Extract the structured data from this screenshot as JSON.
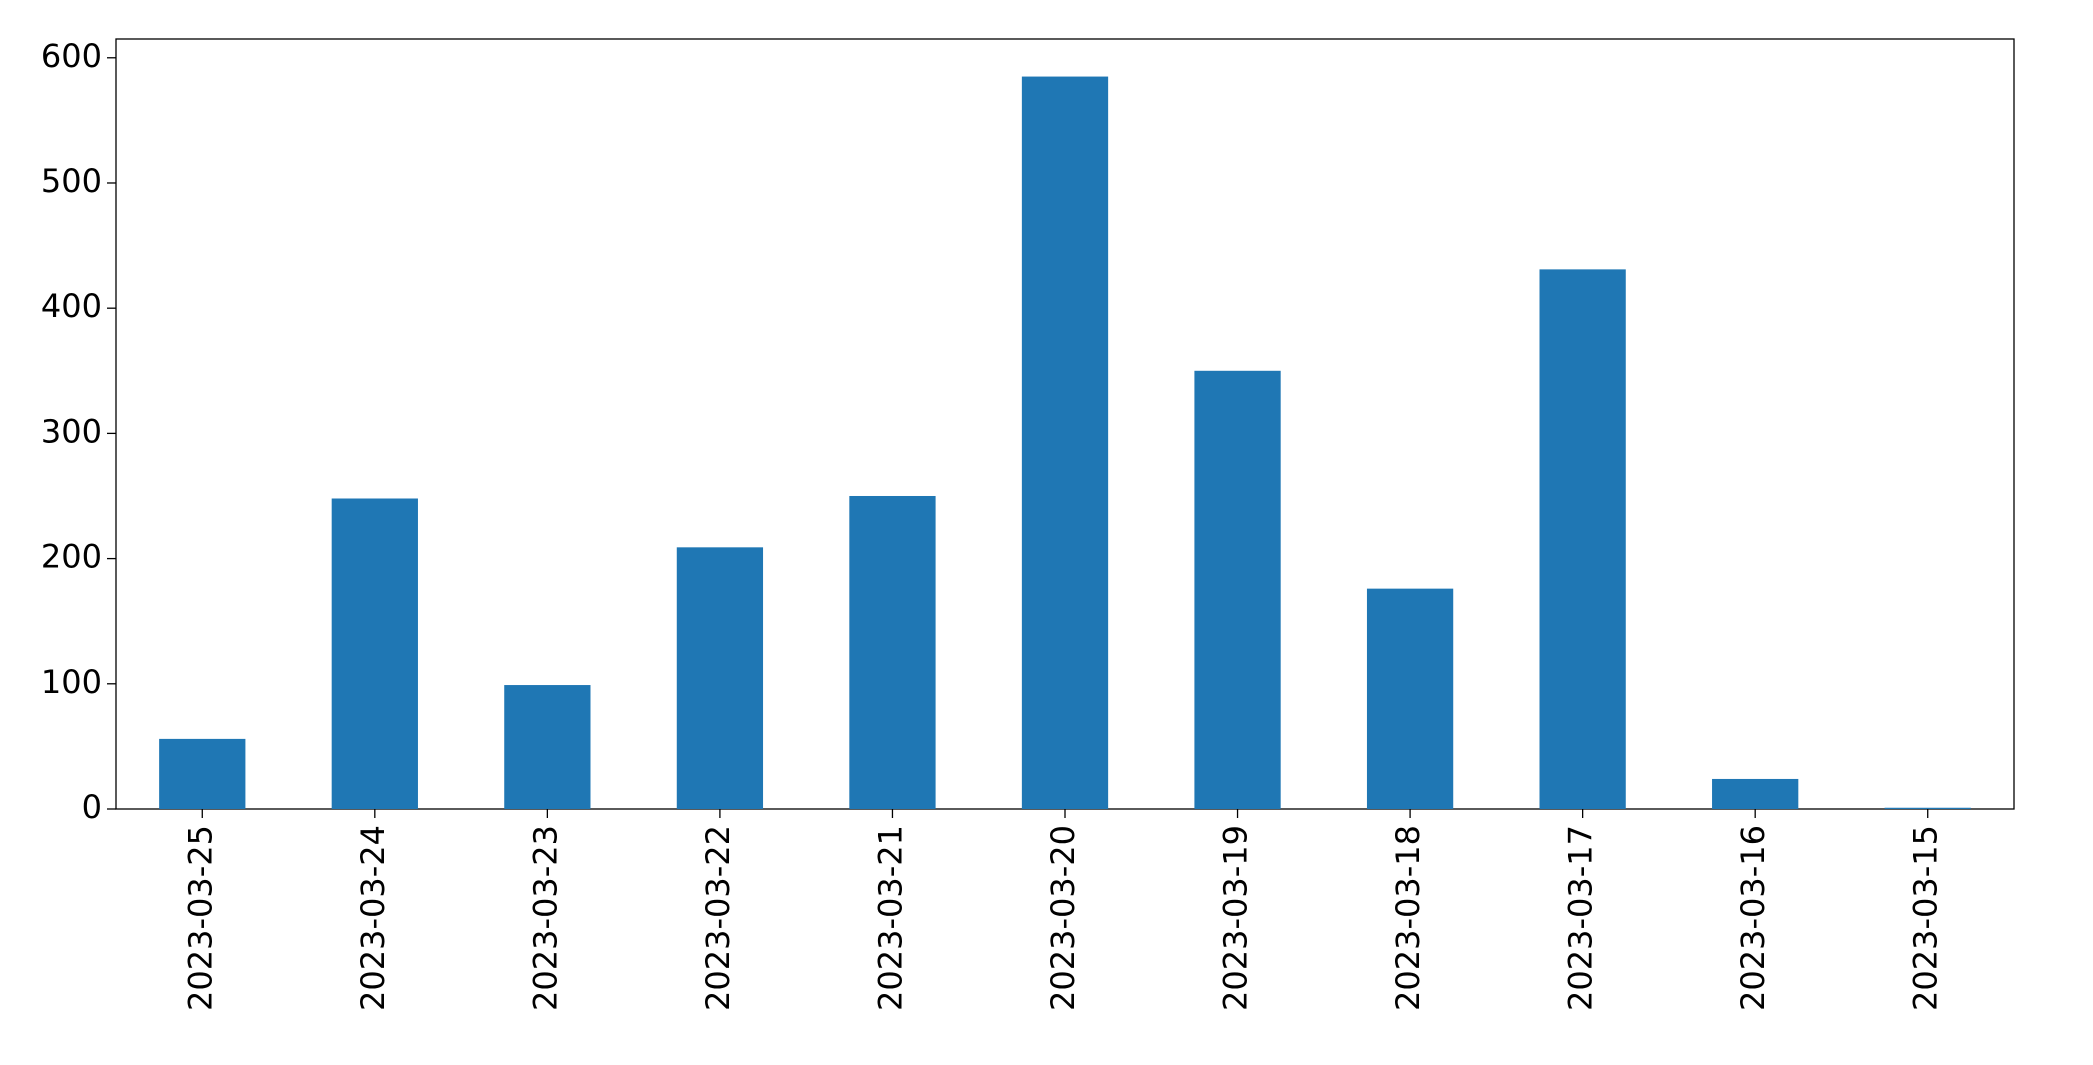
{
  "chart_data": {
    "type": "bar",
    "categories": [
      "2023-03-25",
      "2023-03-24",
      "2023-03-23",
      "2023-03-22",
      "2023-03-21",
      "2023-03-20",
      "2023-03-19",
      "2023-03-18",
      "2023-03-17",
      "2023-03-16",
      "2023-03-15"
    ],
    "values": [
      56,
      248,
      99,
      209,
      250,
      585,
      350,
      176,
      431,
      24,
      1
    ],
    "color": "#1f77b4",
    "ylim": [
      0,
      615
    ],
    "yticks": [
      0,
      100,
      200,
      300,
      400,
      500,
      600
    ],
    "grid": false
  }
}
